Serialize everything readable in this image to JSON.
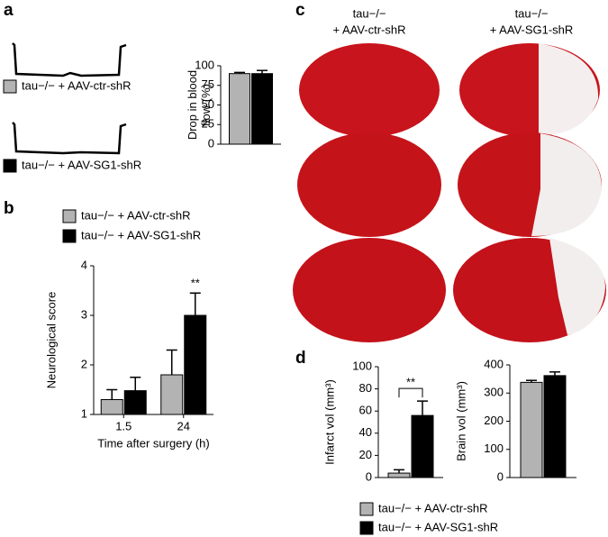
{
  "panel_labels": [
    "a",
    "b",
    "c",
    "d"
  ],
  "column_headers": [
    [
      "tau−/−",
      "+ AAV-ctr-shR"
    ],
    [
      "tau−/−",
      "+ AAV-SG1-shR"
    ]
  ],
  "chart_data": [
    {
      "type": "bar",
      "ylabel": [
        "Drop in blood",
        "flow (%)"
      ],
      "categories": [
        null
      ],
      "series": [
        {
          "name": "tau−/− + AAV-ctr-shR",
          "color": "#b3b3b3",
          "values": [
            90
          ],
          "errors": [
            1.5
          ]
        },
        {
          "name": "tau−/− + AAV-SG1-shR",
          "color": "#000000",
          "values": [
            90
          ],
          "errors": [
            4
          ]
        }
      ],
      "ylim": [
        0,
        100
      ],
      "yticks": [
        0,
        25,
        50,
        75,
        100
      ]
    },
    {
      "type": "bar",
      "ylabel": "Neurological score",
      "xlabel": "Time after surgery (h)",
      "categories": [
        "1.5",
        "24"
      ],
      "series": [
        {
          "name": "tau−/− + AAV-ctr-shR",
          "color": "#b3b3b3",
          "values": [
            1.3,
            1.8
          ],
          "errors": [
            0.2,
            0.5
          ]
        },
        {
          "name": "tau−/− + AAV-SG1-shR",
          "color": "#000000",
          "values": [
            1.48,
            3.0
          ],
          "errors": [
            0.27,
            0.45
          ]
        }
      ],
      "ylim": [
        1,
        4
      ],
      "yticks": [
        1,
        2,
        3,
        4
      ],
      "annotation": "**"
    },
    {
      "type": "bar",
      "ylabel": "Infarct vol (mm³)",
      "categories": [
        null
      ],
      "series": [
        {
          "name": "tau−/− + AAV-ctr-shR",
          "color": "#b3b3b3",
          "values": [
            4
          ],
          "errors": [
            3
          ]
        },
        {
          "name": "tau−/− + AAV-SG1-shR",
          "color": "#000000",
          "values": [
            56
          ],
          "errors": [
            13
          ]
        }
      ],
      "ylim": [
        0,
        100
      ],
      "yticks": [
        0,
        20,
        40,
        60,
        80,
        100
      ],
      "annotation": "**"
    },
    {
      "type": "bar",
      "ylabel": "Brain vol (mm³)",
      "categories": [
        null
      ],
      "series": [
        {
          "color": "#b3b3b3",
          "values": [
            338
          ],
          "errors": [
            7
          ]
        },
        {
          "color": "#000000",
          "values": [
            362
          ],
          "errors": [
            13
          ]
        }
      ],
      "ylim": [
        0,
        400
      ],
      "yticks": [
        0,
        100,
        200,
        300,
        400
      ]
    }
  ]
}
